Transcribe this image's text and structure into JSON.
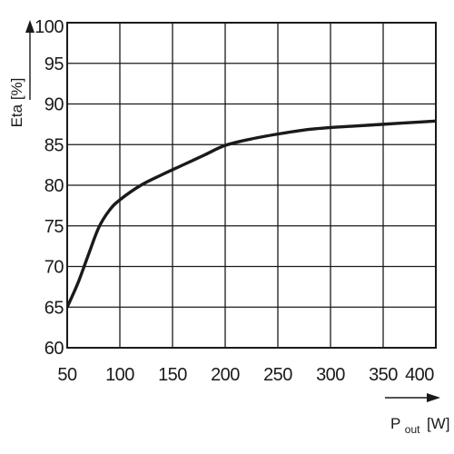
{
  "chart_data": {
    "type": "line",
    "title": "",
    "xlabel": "P out [W]",
    "xlabel_main": "P",
    "xlabel_sub": "out",
    "xlabel_unit": "[W]",
    "ylabel": "Eta [%]",
    "xlim": [
      50,
      400
    ],
    "ylim": [
      60,
      100
    ],
    "xticks": [
      50,
      100,
      150,
      200,
      250,
      300,
      350,
      400
    ],
    "yticks": [
      60,
      65,
      70,
      75,
      80,
      85,
      90,
      95,
      100
    ],
    "grid": true,
    "legend": "none",
    "series": [
      {
        "color": "#1a1a1a",
        "x": [
          50,
          60,
          70,
          80,
          90,
          100,
          120,
          140,
          160,
          180,
          200,
          225,
          250,
          275,
          300,
          325,
          350,
          375,
          400
        ],
        "y": [
          65,
          67.9,
          71.4,
          74.8,
          76.9,
          78.2,
          80,
          81.3,
          82.5,
          83.7,
          84.9,
          85.7,
          86.3,
          86.8,
          87.1,
          87.3,
          87.5,
          87.7,
          87.9
        ]
      }
    ]
  }
}
